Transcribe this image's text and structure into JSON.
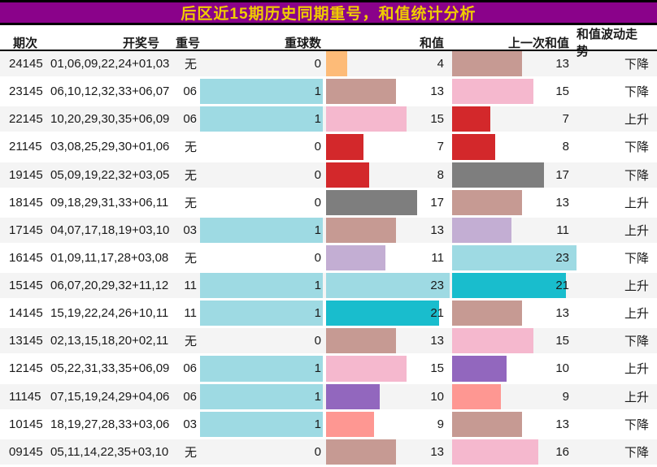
{
  "theme": {
    "title_bg": "#8A028A",
    "title_text": "#F0CC00",
    "border_black": "#000000",
    "row_alt_bg": "#F4F4F4",
    "row_bg": "#FFFFFF",
    "text_color": "#1A1A1A",
    "dup_bar_color": "#9EDAE3"
  },
  "chart_data": {
    "type": "table",
    "title": "后区近15期历史同期重号，和值统计分析",
    "columns": [
      "期次",
      "开奖号",
      "重号",
      "重球数",
      "和值",
      "上一次和值",
      "和值波动走势"
    ],
    "legend_position": "none",
    "bar_scale_max": 23,
    "rows": [
      {
        "period": "24145",
        "draw": "01,06,09,22,24+01,03",
        "dup": "无",
        "dup_count": 0,
        "sum": 4,
        "sum_color": "#FDBB78",
        "prev_sum": 13,
        "prev_sum_color": "#C69A93",
        "trend": "下降"
      },
      {
        "period": "23145",
        "draw": "06,10,12,32,33+06,07",
        "dup": "06",
        "dup_count": 1,
        "sum": 13,
        "sum_color": "#C69A93",
        "prev_sum": 15,
        "prev_sum_color": "#F5B8CE",
        "trend": "下降"
      },
      {
        "period": "22145",
        "draw": "10,20,29,30,35+06,09",
        "dup": "06",
        "dup_count": 1,
        "sum": 15,
        "sum_color": "#F5B8CE",
        "prev_sum": 7,
        "prev_sum_color": "#D3282B",
        "trend": "上升"
      },
      {
        "period": "21145",
        "draw": "03,08,25,29,30+01,06",
        "dup": "无",
        "dup_count": 0,
        "sum": 7,
        "sum_color": "#D3282B",
        "prev_sum": 8,
        "prev_sum_color": "#D3282B",
        "trend": "下降"
      },
      {
        "period": "19145",
        "draw": "05,09,19,22,32+03,05",
        "dup": "无",
        "dup_count": 0,
        "sum": 8,
        "sum_color": "#D3282B",
        "prev_sum": 17,
        "prev_sum_color": "#7E7E7E",
        "trend": "下降"
      },
      {
        "period": "18145",
        "draw": "09,18,29,31,33+06,11",
        "dup": "无",
        "dup_count": 0,
        "sum": 17,
        "sum_color": "#7E7E7E",
        "prev_sum": 13,
        "prev_sum_color": "#C69A93",
        "trend": "上升"
      },
      {
        "period": "17145",
        "draw": "04,07,17,18,19+03,10",
        "dup": "03",
        "dup_count": 1,
        "sum": 13,
        "sum_color": "#C69A93",
        "prev_sum": 11,
        "prev_sum_color": "#C3AED3",
        "trend": "上升"
      },
      {
        "period": "16145",
        "draw": "01,09,11,17,28+03,08",
        "dup": "无",
        "dup_count": 0,
        "sum": 11,
        "sum_color": "#C3AED3",
        "prev_sum": 23,
        "prev_sum_color": "#9EDAE3",
        "trend": "下降"
      },
      {
        "period": "15145",
        "draw": "06,07,20,29,32+11,12",
        "dup": "11",
        "dup_count": 1,
        "sum": 23,
        "sum_color": "#9EDAE3",
        "prev_sum": 21,
        "prev_sum_color": "#19BDCD",
        "trend": "上升"
      },
      {
        "period": "14145",
        "draw": "15,19,22,24,26+10,11",
        "dup": "11",
        "dup_count": 1,
        "sum": 21,
        "sum_color": "#19BDCD",
        "prev_sum": 13,
        "prev_sum_color": "#C69A93",
        "trend": "上升"
      },
      {
        "period": "13145",
        "draw": "02,13,15,18,20+02,11",
        "dup": "无",
        "dup_count": 0,
        "sum": 13,
        "sum_color": "#C69A93",
        "prev_sum": 15,
        "prev_sum_color": "#F5B8CE",
        "trend": "下降"
      },
      {
        "period": "12145",
        "draw": "05,22,31,33,35+06,09",
        "dup": "06",
        "dup_count": 1,
        "sum": 15,
        "sum_color": "#F5B8CE",
        "prev_sum": 10,
        "prev_sum_color": "#9267BE",
        "trend": "上升"
      },
      {
        "period": "11145",
        "draw": "07,15,19,24,29+04,06",
        "dup": "06",
        "dup_count": 1,
        "sum": 10,
        "sum_color": "#9267BE",
        "prev_sum": 9,
        "prev_sum_color": "#FE9792",
        "trend": "上升"
      },
      {
        "period": "10145",
        "draw": "18,19,27,28,33+03,06",
        "dup": "03",
        "dup_count": 1,
        "sum": 9,
        "sum_color": "#FE9792",
        "prev_sum": 13,
        "prev_sum_color": "#C69A93",
        "trend": "下降"
      },
      {
        "period": "09145",
        "draw": "05,11,14,22,35+03,10",
        "dup": "无",
        "dup_count": 0,
        "sum": 13,
        "sum_color": "#C69A93",
        "prev_sum": 16,
        "prev_sum_color": "#F5B8CE",
        "trend": "下降"
      }
    ]
  }
}
